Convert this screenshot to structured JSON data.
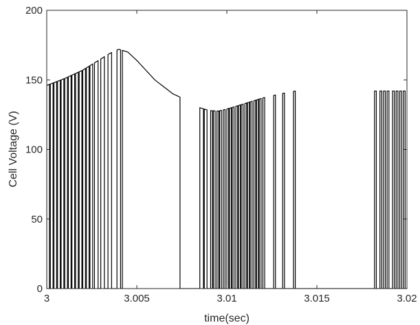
{
  "chart_data": {
    "type": "line",
    "title": "",
    "xlabel": "time(sec)",
    "ylabel": "Cell Voltage (V)",
    "xlim": [
      3.0,
      3.02
    ],
    "ylim": [
      0,
      200
    ],
    "xticks": [
      {
        "value": 3.0,
        "label": "3"
      },
      {
        "value": 3.005,
        "label": "3.005"
      },
      {
        "value": 3.01,
        "label": "3.01"
      },
      {
        "value": 3.015,
        "label": "3.015"
      },
      {
        "value": 3.02,
        "label": "3.02"
      }
    ],
    "yticks": [
      {
        "value": 0,
        "label": "0"
      },
      {
        "value": 50,
        "label": "50"
      },
      {
        "value": 100,
        "label": "100"
      },
      {
        "value": 150,
        "label": "150"
      },
      {
        "value": 200,
        "label": "200"
      }
    ],
    "grid": false,
    "legend": "none",
    "line_color": "#000000",
    "envelope": {
      "x": [
        3.0,
        3.001,
        3.002,
        3.003,
        3.0035,
        3.004,
        3.0045,
        3.005,
        3.006,
        3.007,
        3.0075,
        3.008,
        3.0085,
        3.009,
        3.0095,
        3.01,
        3.011,
        3.012,
        3.013,
        3.0138
      ],
      "y": [
        146,
        151,
        157,
        165,
        169,
        172,
        170,
        164,
        150,
        140,
        137,
        133,
        130,
        128,
        127.5,
        129,
        133,
        137,
        140,
        142
      ]
    },
    "on_segments": [
      [
        3.0,
        3.00015
      ],
      [
        3.0002,
        3.00035
      ],
      [
        3.0004,
        3.00055
      ],
      [
        3.0006,
        3.00075
      ],
      [
        3.0008,
        3.00095
      ],
      [
        3.001,
        3.00115
      ],
      [
        3.0012,
        3.00135
      ],
      [
        3.0014,
        3.00155
      ],
      [
        3.0016,
        3.00175
      ],
      [
        3.0018,
        3.00195
      ],
      [
        3.002,
        3.00215
      ],
      [
        3.0022,
        3.00235
      ],
      [
        3.0024,
        3.00255
      ],
      [
        3.00265,
        3.00285
      ],
      [
        3.003,
        3.0032
      ],
      [
        3.0034,
        3.0036
      ],
      [
        3.0039,
        3.0041
      ],
      [
        3.0042,
        3.0074
      ],
      [
        3.0085,
        3.0087
      ],
      [
        3.00875,
        3.0089
      ],
      [
        3.0091,
        3.0092
      ],
      [
        3.00925,
        3.00935
      ],
      [
        3.00945,
        3.00955
      ],
      [
        3.0096,
        3.0097
      ],
      [
        3.0098,
        3.0099
      ],
      [
        3.01,
        3.0101
      ],
      [
        3.01015,
        3.01025
      ],
      [
        3.0103,
        3.0104
      ],
      [
        3.0105,
        3.0106
      ],
      [
        3.01065,
        3.01075
      ],
      [
        3.0108,
        3.0109
      ],
      [
        3.011,
        3.0111
      ],
      [
        3.01115,
        3.01125
      ],
      [
        3.0113,
        3.0114
      ],
      [
        3.0115,
        3.0116
      ],
      [
        3.01165,
        3.01175
      ],
      [
        3.0118,
        3.0119
      ],
      [
        3.012,
        3.0121
      ],
      [
        3.0126,
        3.0127
      ],
      [
        3.0131,
        3.0132
      ],
      [
        3.0137,
        3.0138
      ],
      [
        3.0182,
        3.0183
      ],
      [
        3.0185,
        3.0186
      ],
      [
        3.0187,
        3.0188
      ],
      [
        3.0189,
        3.019
      ],
      [
        3.0192,
        3.0193
      ],
      [
        3.0194,
        3.0195
      ],
      [
        3.0196,
        3.0197
      ],
      [
        3.0198,
        3.0199
      ]
    ]
  }
}
